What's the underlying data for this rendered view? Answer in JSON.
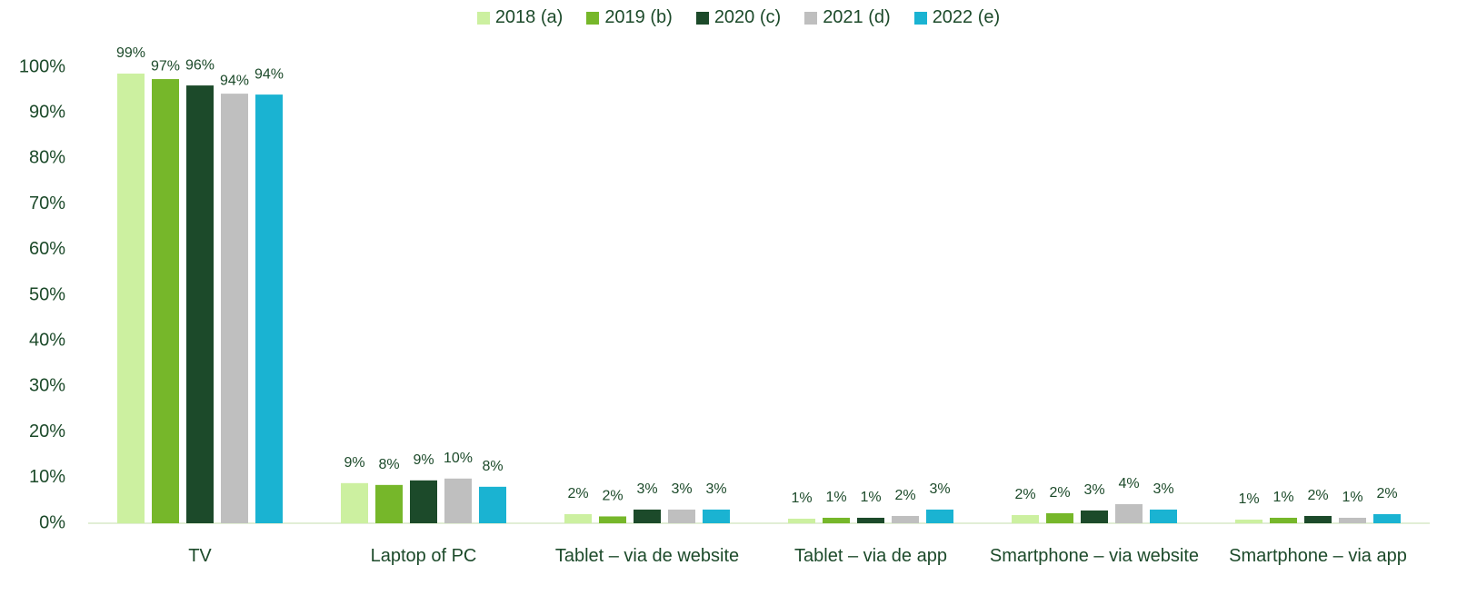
{
  "chart_data": {
    "type": "bar",
    "categories": [
      "TV",
      "Laptop of PC",
      "Tablet – via de website",
      "Tablet – via de app",
      "Smartphone – via website",
      "Smartphone – via app"
    ],
    "series": [
      {
        "name": "2018 (a)",
        "color": "#ccf0a0",
        "values": [
          98.6,
          8.8,
          2.0,
          1.0,
          1.8,
          0.8
        ],
        "value_labels": [
          "99%",
          "9%",
          "2%",
          "1%",
          "2%",
          "1%"
        ]
      },
      {
        "name": "2019 (b)",
        "color": "#76b72a",
        "values": [
          97.4,
          8.4,
          1.5,
          1.2,
          2.2,
          1.2
        ],
        "value_labels": [
          "97%",
          "8%",
          "2%",
          "1%",
          "2%",
          "1%"
        ]
      },
      {
        "name": "2020 (c)",
        "color": "#1c4a2a",
        "values": [
          96.0,
          9.4,
          3.0,
          1.2,
          2.8,
          1.6
        ],
        "value_labels": [
          "96%",
          "9%",
          "3%",
          "1%",
          "3%",
          "2%"
        ]
      },
      {
        "name": "2021 (d)",
        "color": "#bfbfbf",
        "values": [
          94.2,
          9.8,
          3.0,
          1.6,
          4.2,
          1.2
        ],
        "value_labels": [
          "94%",
          "10%",
          "3%",
          "2%",
          "4%",
          "1%"
        ]
      },
      {
        "name": "2022 (e)",
        "color": "#1ab3d2",
        "values": [
          94.0,
          8.0,
          3.0,
          3.0,
          3.0,
          2.0
        ],
        "value_labels": [
          "94%",
          "8%",
          "3%",
          "3%",
          "3%",
          "2%"
        ]
      }
    ],
    "ylim": [
      0,
      100
    ],
    "yticks": [
      {
        "value": 0,
        "label": "0%"
      },
      {
        "value": 10,
        "label": "10%"
      },
      {
        "value": 20,
        "label": "20%"
      },
      {
        "value": 30,
        "label": "30%"
      },
      {
        "value": 40,
        "label": "40%"
      },
      {
        "value": 50,
        "label": "50%"
      },
      {
        "value": 60,
        "label": "60%"
      },
      {
        "value": 70,
        "label": "70%"
      },
      {
        "value": 80,
        "label": "80%"
      },
      {
        "value": 90,
        "label": "90%"
      },
      {
        "value": 100,
        "label": "100%"
      }
    ],
    "legend": "top"
  }
}
